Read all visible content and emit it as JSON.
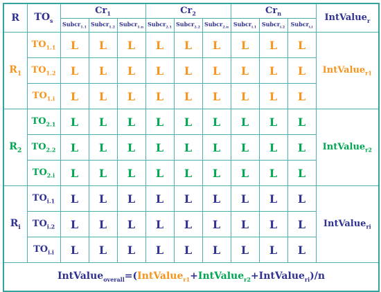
{
  "header": {
    "r": "R",
    "tos": "TO",
    "tos_sub": "s",
    "criteria": [
      {
        "label": "Cr",
        "sub": "1",
        "subcriteria": [
          {
            "label": "Subcr",
            "sub": "1.1"
          },
          {
            "label": "Subcr",
            "sub": "1.2"
          },
          {
            "label": "Subcr",
            "sub": "1.n"
          }
        ]
      },
      {
        "label": "Cr",
        "sub": "2",
        "subcriteria": [
          {
            "label": "Subcr",
            "sub": "2.1"
          },
          {
            "label": "Subcr",
            "sub": "2.2"
          },
          {
            "label": "Subcr",
            "sub": "2.n"
          }
        ]
      },
      {
        "label": "Cr",
        "sub": "n",
        "subcriteria": [
          {
            "label": "Subcr",
            "sub": "i.1"
          },
          {
            "label": "Subcr",
            "sub": "i.2"
          },
          {
            "label": "Subcr",
            "sub": "i.i"
          }
        ]
      }
    ],
    "intvalue": "IntValue",
    "intvalue_sub": "r"
  },
  "groups": [
    {
      "r_label": "R",
      "r_sub": "1",
      "color": "#f7941d",
      "intvalue": "IntValue",
      "intvalue_sub": "r1",
      "rows": [
        {
          "to": "TO",
          "to_sub": "1.1",
          "cells": [
            "L",
            "L",
            "L",
            "L",
            "L",
            "L",
            "L",
            "L",
            "L"
          ]
        },
        {
          "to": "TO",
          "to_sub": "1.2",
          "cells": [
            "L",
            "L",
            "L",
            "L",
            "L",
            "L",
            "L",
            "L",
            "L"
          ]
        },
        {
          "to": "TO",
          "to_sub": "1.i",
          "cells": [
            "L",
            "L",
            "L",
            "L",
            "L",
            "L",
            "L",
            "L",
            "L"
          ]
        }
      ]
    },
    {
      "r_label": "R",
      "r_sub": "2",
      "color": "#00a651",
      "intvalue": "IntValue",
      "intvalue_sub": "r2",
      "rows": [
        {
          "to": "TO",
          "to_sub": "2.1",
          "cells": [
            "L",
            "L",
            "L",
            "L",
            "L",
            "L",
            "L",
            "L",
            "L"
          ]
        },
        {
          "to": "TO",
          "to_sub": "2.2",
          "cells": [
            "L",
            "L",
            "L",
            "L",
            "L",
            "L",
            "L",
            "L",
            "L"
          ]
        },
        {
          "to": "TO",
          "to_sub": "2.i",
          "cells": [
            "L",
            "L",
            "L",
            "L",
            "L",
            "L",
            "L",
            "L",
            "L"
          ]
        }
      ]
    },
    {
      "r_label": "R",
      "r_sub": "i",
      "color": "#2e3192",
      "intvalue": "IntValue",
      "intvalue_sub": "ri",
      "rows": [
        {
          "to": "TO",
          "to_sub": "i.1",
          "cells": [
            "L",
            "L",
            "L",
            "L",
            "L",
            "L",
            "L",
            "L",
            "L"
          ]
        },
        {
          "to": "TO",
          "to_sub": "i.2",
          "cells": [
            "L",
            "L",
            "L",
            "L",
            "L",
            "L",
            "L",
            "L",
            "L"
          ]
        },
        {
          "to": "TO",
          "to_sub": "i.i",
          "cells": [
            "L",
            "L",
            "L",
            "L",
            "L",
            "L",
            "L",
            "L",
            "L"
          ]
        }
      ]
    }
  ],
  "formula": {
    "lhs": "IntValue",
    "lhs_sub": "overall",
    "eq_open": "=(",
    "t1": "IntValue",
    "t1_sub": "r1",
    "plus1": "+",
    "t2": "IntValue",
    "t2_sub": "r2",
    "plus2": "+",
    "t3": "IntValue",
    "t3_sub": "ri",
    "close": ")/n"
  },
  "colors": {
    "navy": "#2e3192",
    "orange": "#f7941d",
    "green": "#00a651",
    "border": "#4aaeb0"
  }
}
